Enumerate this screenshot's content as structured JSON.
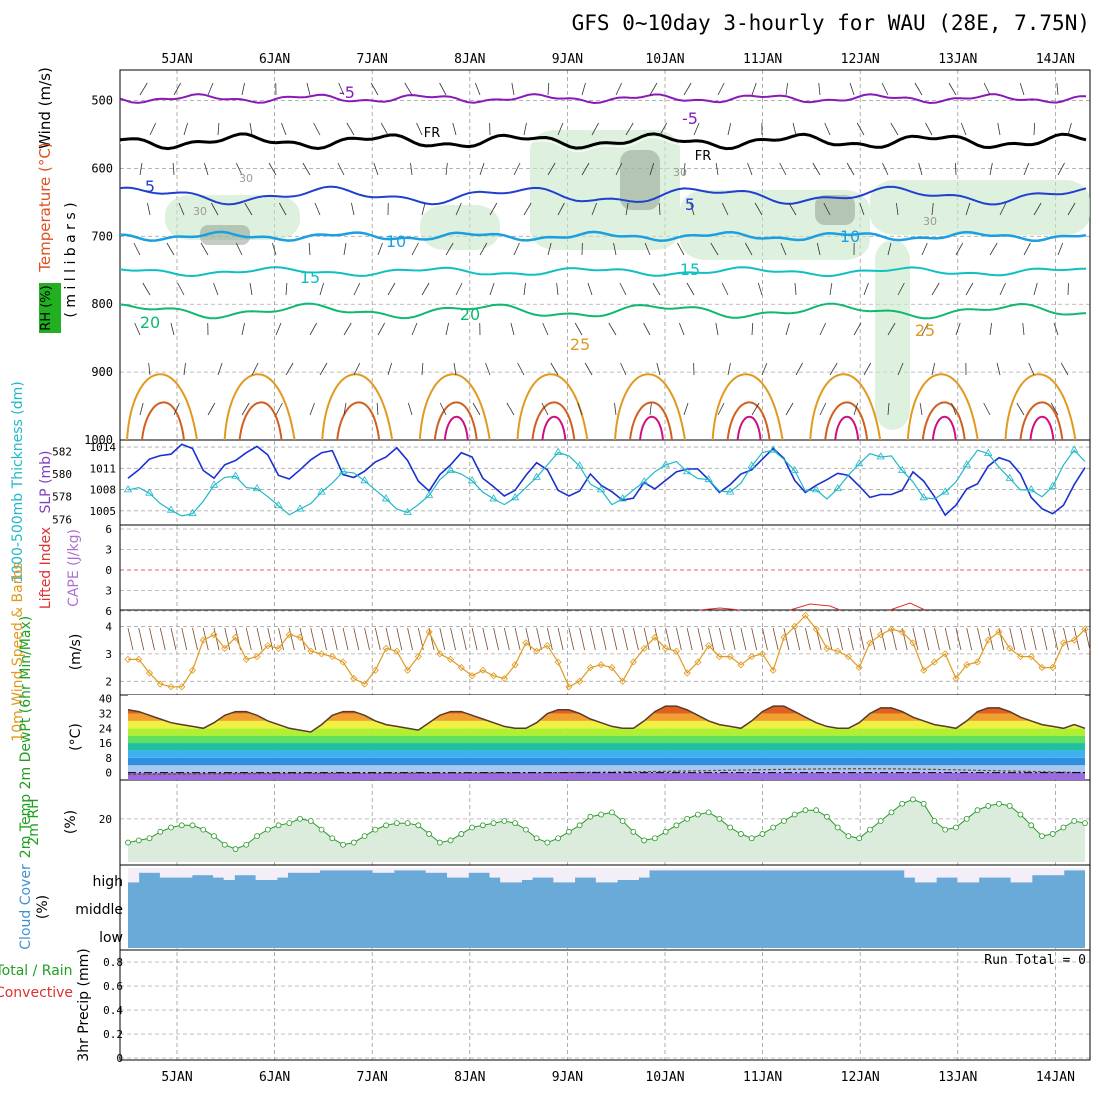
{
  "title": "GFS 0~10day 3-hourly for WAU (28E, 7.75N)",
  "dates": [
    "5JAN",
    "6JAN",
    "7JAN",
    "8JAN",
    "9JAN",
    "10JAN",
    "11JAN",
    "12JAN",
    "13JAN",
    "14JAN"
  ],
  "colors": {
    "purple": "#8a1ab8",
    "black": "#000000",
    "blue": "#2040d0",
    "lightblue": "#1aa0e0",
    "teal": "#10c0c0",
    "green": "#10b870",
    "orange": "#e09a20",
    "darkorange": "#d06020",
    "magenta": "#d01080",
    "rh_fill": "#c8e6c8",
    "cloud": "#6aaad8",
    "cloud_light": "#f4eef8",
    "lifted": "#e03030",
    "cape": "#b070d0",
    "wind10": "#e09a20",
    "rh2m": "#2a9a2a"
  },
  "panels": {
    "upper": {
      "ylabel_wind": "Wind (m/s)",
      "ylabel_temp": "Temperature (°C)",
      "ylabel_rh": "RH (%)",
      "ylabel_mb": "( m i l l i b a r s )",
      "pressure_ticks": [
        "500",
        "600",
        "700",
        "800",
        "900",
        "1000"
      ],
      "contour_labels": [
        "-5",
        "-5",
        "FR",
        "FR",
        "5",
        "5",
        "10",
        "10",
        "15",
        "15",
        "20",
        "20",
        "25",
        "25",
        "30",
        "30",
        "30",
        "30"
      ]
    },
    "slp": {
      "ylabel_thick": "1000-500mb Thickness (dm)",
      "ylabel_slp": "SLP (mb)",
      "thick_ticks": [
        "582",
        "580",
        "578",
        "576"
      ],
      "slp_ticks": [
        "1014",
        "1011",
        "1008",
        "1005"
      ]
    },
    "cape": {
      "ylabel_li": "Lifted Index",
      "ylabel_cape": "CAPE (J/kg)",
      "ticks": [
        "6",
        "3",
        "0",
        "3",
        "6"
      ]
    },
    "wind10": {
      "ylabel": "10m Wind Speed & Barbs",
      "ylabel2": "(m/s)",
      "ticks": [
        "4",
        "3",
        "2"
      ]
    },
    "temp2m": {
      "ylabel": "2m Temp 2m DewPt (6hr Min/Max)",
      "ylabel2": "(°C)",
      "ticks": [
        "40",
        "32",
        "24",
        "16",
        "8",
        "0"
      ]
    },
    "rh2m": {
      "ylabel": "2m RH",
      "ylabel2": "(%)",
      "ticks": [
        "20"
      ]
    },
    "cloud": {
      "ylabel": "Cloud Cover",
      "ylabel2": "(%)",
      "levels": [
        "high",
        "middle",
        "low"
      ]
    },
    "precip": {
      "ylabel_total": "Total / Rain",
      "ylabel_conv": "Convective",
      "ylabel_precip": "3hr Precip (mm)",
      "ticks": [
        "0.8",
        "0.6",
        "0.4",
        "0.2",
        "0"
      ],
      "run_total": "Run Total = 0"
    }
  },
  "chart_data": [
    {
      "type": "line",
      "name": "SLP and 1000-500mb thickness",
      "series": [
        {
          "name": "SLP (mb)",
          "values": [
            1009.6,
            1010.8,
            1012.3,
            1012.8,
            1013.0,
            1014.4,
            1013.8,
            1010.7,
            1009.6,
            1011.5,
            1012.1,
            1013.2,
            1014.1,
            1012.9,
            1010.0,
            1009.5,
            1010.8,
            1012.2,
            1013.2,
            1013.5,
            1010.1,
            1009.7,
            1010.6,
            1011.9,
            1012.6,
            1013.9,
            1012.1,
            1009.2,
            1007.8,
            1010.1,
            1011.5,
            1013.2,
            1012.6,
            1009.6,
            1008.4,
            1007.1,
            1007.9,
            1010.0,
            1011.8,
            1010.8,
            1007.9,
            1007.1,
            1007.8,
            1010.2,
            1008.6,
            1007.7,
            1006.5,
            1006.8,
            1009.0,
            1008.1,
            1009.3,
            1010.5,
            1010.9,
            1010.9,
            1009.4,
            1007.6,
            1008.7,
            1010.2,
            1010.8,
            1012.3,
            1013.8,
            1012.4,
            1009.3,
            1007.6,
            1008.6,
            1009.4,
            1010.3,
            1010.0,
            1008.5,
            1006.9,
            1007.3,
            1007.3,
            1007.9,
            1010.5,
            1009.2,
            1007.0,
            1004.4,
            1005.8,
            1008.1,
            1008.8,
            1011.3,
            1012.5,
            1012.0,
            1010.2,
            1006.9,
            1005.3,
            1004.6,
            1005.8,
            1008.7,
            1011.1
          ]
        },
        {
          "name": "1000-500mb Thickness (dm)",
          "values": [
            578.6,
            578.8,
            578.3,
            577.4,
            576.8,
            576.3,
            576.5,
            577.6,
            579.0,
            579.7,
            579.8,
            578.8,
            578.7,
            578.0,
            577.2,
            576.4,
            576.9,
            577.4,
            578.4,
            579.2,
            580.2,
            580.1,
            579.4,
            578.6,
            577.8,
            576.9,
            576.6,
            577.3,
            578.1,
            579.5,
            580.3,
            580.0,
            579.4,
            578.4,
            577.8,
            577.3,
            577.9,
            578.8,
            579.7,
            580.8,
            581.9,
            581.6,
            580.7,
            579.1,
            578.6,
            577.3,
            577.8,
            578.6,
            579.3,
            580.2,
            580.8,
            581.1,
            580.2,
            579.6,
            579.5,
            578.5,
            578.4,
            579.2,
            580.7,
            581.9,
            582.1,
            581.3,
            580.3,
            578.5,
            578.6,
            577.8,
            578.7,
            579.9,
            580.9,
            581.8,
            581.5,
            581.6,
            580.3,
            579.3,
            577.9,
            577.8,
            578.4,
            579.3,
            580.8,
            582.1,
            581.8,
            580.6,
            579.6,
            578.6,
            578.6,
            578.0,
            578.9,
            580.8,
            582.1,
            581.1
          ]
        }
      ],
      "ylim_slp": [
        1003,
        1015
      ],
      "ylim_thick": [
        575.5,
        583
      ]
    },
    {
      "type": "line",
      "name": "10m Wind Speed",
      "series": [
        {
          "name": "10m Wind Speed (m/s)",
          "values": [
            2.8,
            2.8,
            2.3,
            1.9,
            1.8,
            1.8,
            2.4,
            3.5,
            3.7,
            3.2,
            3.6,
            2.8,
            2.9,
            3.3,
            3.2,
            3.7,
            3.6,
            3.1,
            3.0,
            2.9,
            2.7,
            2.1,
            1.9,
            2.4,
            3.2,
            3.1,
            2.4,
            2.9,
            3.8,
            3.0,
            2.8,
            2.5,
            2.2,
            2.4,
            2.2,
            2.1,
            2.6,
            3.4,
            3.1,
            3.3,
            2.7,
            1.8,
            2.0,
            2.5,
            2.6,
            2.5,
            2.0,
            2.7,
            3.2,
            3.6,
            3.2,
            3.1,
            2.3,
            2.7,
            3.3,
            2.9,
            2.9,
            2.6,
            2.9,
            3.0,
            2.4,
            3.6,
            4.0,
            4.4,
            3.9,
            3.2,
            3.1,
            2.9,
            2.5,
            3.4,
            3.7,
            3.9,
            3.8,
            3.4,
            2.4,
            2.7,
            3.0,
            2.1,
            2.6,
            2.7,
            3.5,
            3.8,
            3.2,
            2.9,
            2.9,
            2.5,
            2.5,
            3.4,
            3.5,
            3.9
          ]
        }
      ],
      "ylim": [
        1.5,
        4.6
      ]
    },
    {
      "type": "area",
      "name": "2m Temp",
      "series": [
        {
          "name": "2m Temp (°C)",
          "values": [
            34,
            33,
            31,
            29,
            27,
            26,
            25,
            24,
            27,
            31,
            33,
            33,
            31,
            28,
            26,
            24,
            23,
            22,
            26,
            31,
            33,
            33,
            31,
            28,
            26,
            25,
            24,
            23,
            27,
            31,
            33,
            33,
            31,
            29,
            27,
            25,
            24,
            24,
            27,
            32,
            34,
            34,
            32,
            29,
            27,
            25,
            24,
            24,
            28,
            33,
            36,
            36,
            34,
            31,
            28,
            26,
            25,
            24,
            28,
            33,
            36,
            36,
            33,
            30,
            27,
            25,
            24,
            24,
            27,
            32,
            35,
            35,
            33,
            30,
            28,
            26,
            25,
            24,
            28,
            33,
            35,
            35,
            33,
            30,
            28,
            26,
            25,
            24,
            26,
            24
          ]
        }
      ],
      "ylim": [
        -4,
        42
      ]
    },
    {
      "type": "line",
      "name": "2m RH",
      "series": [
        {
          "name": "2m RH (%)",
          "values": [
            9,
            10,
            11,
            14,
            16,
            17,
            17,
            15,
            12,
            8,
            6,
            8,
            12,
            15,
            17,
            18,
            20,
            19,
            15,
            11,
            8,
            9,
            12,
            15,
            17,
            18,
            18,
            17,
            13,
            9,
            10,
            13,
            16,
            17,
            18,
            19,
            18,
            15,
            11,
            9,
            11,
            14,
            17,
            21,
            22,
            23,
            19,
            14,
            10,
            11,
            14,
            17,
            20,
            22,
            23,
            20,
            16,
            13,
            11,
            13,
            16,
            19,
            22,
            24,
            24,
            21,
            16,
            12,
            11,
            15,
            19,
            23,
            27,
            29,
            27,
            19,
            15,
            16,
            20,
            24,
            26,
            27,
            26,
            22,
            17,
            12,
            13,
            16,
            19,
            18
          ]
        }
      ],
      "ylim": [
        0,
        38
      ]
    },
    {
      "type": "bar",
      "name": "Cloud Cover",
      "series": [
        {
          "name": "high cloud (%)",
          "values": [
            40,
            80,
            80,
            60,
            60,
            60,
            70,
            70,
            60,
            50,
            70,
            70,
            50,
            50,
            60,
            80,
            80,
            80,
            90,
            90,
            90,
            90,
            90,
            80,
            80,
            90,
            90,
            90,
            80,
            80,
            60,
            60,
            80,
            80,
            60,
            40,
            40,
            50,
            60,
            60,
            40,
            40,
            60,
            60,
            40,
            40,
            50,
            50,
            60,
            90,
            90,
            90,
            90,
            90,
            90,
            90,
            90,
            90,
            90,
            90,
            90,
            90,
            90,
            90,
            90,
            90,
            90,
            90,
            90,
            90,
            90,
            90,
            90,
            60,
            40,
            40,
            60,
            60,
            40,
            40,
            60,
            60,
            60,
            40,
            40,
            70,
            70,
            70,
            90,
            90
          ]
        }
      ],
      "ylim": [
        0,
        100
      ]
    },
    {
      "type": "bar",
      "name": "3hr Precip",
      "series": [
        {
          "name": "3hr Precip (mm)",
          "values": [
            0,
            0,
            0,
            0,
            0,
            0,
            0,
            0,
            0,
            0,
            0,
            0,
            0,
            0,
            0,
            0,
            0,
            0,
            0,
            0,
            0,
            0,
            0,
            0,
            0,
            0,
            0,
            0,
            0,
            0,
            0,
            0,
            0,
            0,
            0,
            0,
            0,
            0,
            0,
            0,
            0,
            0,
            0,
            0,
            0,
            0,
            0,
            0,
            0,
            0,
            0,
            0,
            0,
            0,
            0,
            0,
            0,
            0,
            0,
            0,
            0,
            0,
            0,
            0,
            0,
            0,
            0,
            0,
            0,
            0,
            0,
            0,
            0,
            0,
            0,
            0,
            0,
            0,
            0,
            0,
            0,
            0,
            0,
            0,
            0,
            0,
            0,
            0,
            0,
            0
          ]
        }
      ],
      "ylim": [
        0,
        0.9
      ]
    }
  ]
}
